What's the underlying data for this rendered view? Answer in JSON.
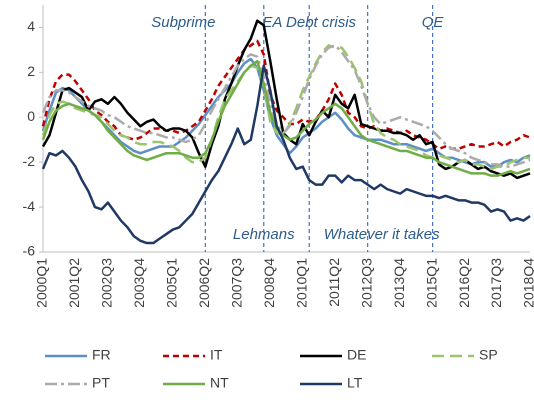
{
  "chart_data": {
    "type": "line",
    "categories": [
      "2000Q1",
      null,
      null,
      null,
      null,
      "2001Q2",
      null,
      null,
      null,
      null,
      "2002Q3",
      null,
      null,
      null,
      null,
      "2003Q4",
      null,
      null,
      null,
      null,
      "2005Q1",
      null,
      null,
      null,
      null,
      "2006Q2",
      null,
      null,
      null,
      null,
      "2007Q3",
      null,
      null,
      null,
      null,
      "2008Q4",
      null,
      null,
      null,
      null,
      "2010Q1",
      null,
      null,
      null,
      null,
      "2011Q2",
      null,
      null,
      null,
      null,
      "2012Q3",
      null,
      null,
      null,
      null,
      "2013Q4",
      null,
      null,
      null,
      null,
      "2015Q1",
      null,
      null,
      null,
      null,
      "2016Q2",
      null,
      null,
      null,
      null,
      "2017Q3",
      null,
      null,
      null,
      null,
      "2018Q4"
    ],
    "ylim": [
      -6,
      5
    ],
    "yticks": [
      -6,
      -4,
      -2,
      0,
      2,
      4
    ],
    "grid": false,
    "series": [
      {
        "name": "FR",
        "color": "#5b8fc7",
        "style": "solid",
        "values": [
          -0.6,
          0.3,
          1.1,
          1.3,
          1.2,
          0.9,
          0.6,
          0.3,
          0.1,
          -0.2,
          -0.5,
          -0.8,
          -1.1,
          -1.3,
          -1.5,
          -1.6,
          -1.5,
          -1.4,
          -1.3,
          -1.3,
          -1.3,
          -1.1,
          -0.9,
          -0.6,
          -0.3,
          0.1,
          0.5,
          0.9,
          1.2,
          1.5,
          2.0,
          2.4,
          2.6,
          2.2,
          1.2,
          0.0,
          -0.8,
          -1.2,
          -1.6,
          -1.3,
          -0.9,
          -0.7,
          -0.5,
          -0.2,
          0.0,
          0.2,
          -0.1,
          -0.5,
          -0.8,
          -0.9,
          -1.0,
          -1.0,
          -1.0,
          -1.1,
          -1.2,
          -1.2,
          -1.2,
          -1.3,
          -1.4,
          -1.5,
          -1.4,
          -1.6,
          -1.8,
          -1.8,
          -1.9,
          -2.0,
          -2.1,
          -2.0,
          -2.0,
          -2.2,
          -2.2,
          -2.0,
          -1.9,
          -2.0,
          -1.8,
          -1.7
        ]
      },
      {
        "name": "IT",
        "color": "#c00000",
        "style": "dash",
        "values": [
          -0.4,
          0.8,
          1.6,
          1.9,
          1.9,
          1.6,
          1.2,
          0.8,
          0.3,
          0.1,
          -0.2,
          -0.4,
          -0.8,
          -0.9,
          -1.0,
          -0.9,
          -0.7,
          -0.5,
          -0.5,
          -0.6,
          -0.6,
          -0.7,
          -0.6,
          -0.4,
          -0.2,
          0.3,
          0.8,
          1.4,
          1.8,
          2.2,
          2.6,
          3.0,
          3.2,
          3.4,
          2.8,
          1.0,
          0.3,
          0.0,
          -0.3,
          -0.3,
          -0.1,
          -0.2,
          -0.1,
          0.3,
          0.8,
          1.5,
          1.0,
          0.2,
          0.0,
          -0.4,
          -0.5,
          -0.4,
          -0.6,
          -0.5,
          -0.6,
          -0.7,
          -0.6,
          -0.8,
          -0.9,
          -1.0,
          -1.2,
          -1.4,
          -1.3,
          -1.4,
          -1.4,
          -1.3,
          -1.2,
          -1.3,
          -1.3,
          -1.2,
          -1.1,
          -1.3,
          -1.1,
          -1.0,
          -0.8,
          -0.9
        ]
      },
      {
        "name": "DE",
        "color": "#000000",
        "style": "solid",
        "values": [
          -1.3,
          -0.8,
          0.2,
          1.2,
          1.3,
          1.1,
          0.9,
          0.3,
          0.7,
          0.8,
          0.6,
          0.9,
          0.6,
          0.2,
          -0.1,
          -0.4,
          -0.2,
          -0.1,
          -0.4,
          -0.6,
          -0.5,
          -0.5,
          -0.6,
          -0.9,
          -1.6,
          -2.2,
          -1.2,
          -0.4,
          0.8,
          1.5,
          2.3,
          3.0,
          3.5,
          4.3,
          4.1,
          2.5,
          0.8,
          -0.7,
          -1.0,
          -1.2,
          -0.3,
          -0.8,
          -0.2,
          0.3,
          0.0,
          1.0,
          0.6,
          0.4,
          1.0,
          -0.3,
          -0.4,
          -0.5,
          -0.6,
          -0.6,
          -0.7,
          -0.7,
          -0.8,
          -1.0,
          -0.8,
          -1.2,
          -1.1,
          -2.1,
          -2.3,
          -2.2,
          -2.0,
          -1.9,
          -2.1,
          -2.3,
          -2.2,
          -2.4,
          -2.5,
          -2.6,
          -2.5,
          -2.7,
          -2.6,
          -2.5
        ]
      },
      {
        "name": "SP",
        "color": "#9cc46c",
        "style": "longdash",
        "values": [
          -0.8,
          0.1,
          0.6,
          0.7,
          0.6,
          0.4,
          0.3,
          0.2,
          0.1,
          0.0,
          -0.3,
          -0.6,
          -0.8,
          -0.9,
          -1.1,
          -1.2,
          -1.2,
          -1.1,
          -1.1,
          -1.2,
          -1.3,
          -1.5,
          -1.8,
          -2.0,
          -2.0,
          -1.8,
          -1.0,
          0.0,
          0.8,
          1.2,
          1.6,
          2.0,
          2.3,
          2.2,
          1.4,
          -0.2,
          -0.7,
          -0.8,
          -0.3,
          0.4,
          1.2,
          1.8,
          2.4,
          2.9,
          3.2,
          3.1,
          3.1,
          2.7,
          2.2,
          1.6,
          0.6,
          -0.3,
          -0.7,
          -0.9,
          -1.0,
          -1.2,
          -1.3,
          -1.4,
          -1.5,
          -1.7,
          -1.8,
          -1.7,
          -1.8,
          -1.9,
          -2.0,
          -1.9,
          -2.1,
          -2.1,
          -2.2,
          -2.3,
          -2.2,
          -2.2,
          -2.0,
          -1.9,
          -1.8,
          -1.8
        ]
      },
      {
        "name": "PT",
        "color": "#ababab",
        "style": "dashdot",
        "values": [
          0.2,
          0.9,
          1.2,
          1.2,
          1.1,
          0.9,
          0.7,
          0.5,
          0.4,
          0.3,
          0.1,
          0.0,
          -0.2,
          -0.4,
          -0.5,
          -0.6,
          -0.7,
          -0.7,
          -0.8,
          -0.9,
          -0.9,
          -1.0,
          -1.1,
          -1.0,
          -0.8,
          -0.3,
          0.3,
          0.8,
          1.3,
          1.8,
          2.3,
          2.6,
          2.8,
          2.7,
          1.8,
          0.6,
          -0.3,
          -0.7,
          -0.4,
          0.2,
          0.9,
          1.7,
          2.3,
          2.8,
          3.1,
          3.2,
          2.9,
          2.5,
          2.1,
          1.4,
          0.6,
          0.0,
          -0.3,
          -0.2,
          -0.1,
          0.0,
          -0.1,
          -0.2,
          -0.3,
          -0.4,
          -0.6,
          -0.9,
          -1.2,
          -1.4,
          -1.5,
          -1.6,
          -1.8,
          -1.9,
          -2.0,
          -2.1,
          -2.1,
          -2.2,
          -2.2,
          -2.1,
          -2.0,
          -1.9
        ]
      },
      {
        "name": "NT",
        "color": "#70ad47",
        "style": "solid",
        "values": [
          -1.0,
          -0.2,
          0.3,
          0.5,
          0.6,
          0.5,
          0.4,
          0.3,
          0.1,
          -0.2,
          -0.6,
          -0.9,
          -1.2,
          -1.5,
          -1.7,
          -1.8,
          -1.9,
          -1.8,
          -1.7,
          -1.6,
          -1.6,
          -1.6,
          -1.7,
          -1.8,
          -1.8,
          -1.6,
          -1.0,
          -0.2,
          0.5,
          1.0,
          1.5,
          2.0,
          2.3,
          2.5,
          1.5,
          0.2,
          -0.5,
          -0.8,
          -1.0,
          -0.9,
          -0.6,
          -0.3,
          -0.1,
          0.2,
          0.4,
          0.6,
          0.4,
          0.0,
          -0.4,
          -0.8,
          -1.0,
          -1.1,
          -1.2,
          -1.3,
          -1.4,
          -1.5,
          -1.5,
          -1.6,
          -1.7,
          -1.8,
          -1.8,
          -2.0,
          -2.1,
          -2.2,
          -2.3,
          -2.4,
          -2.5,
          -2.5,
          -2.5,
          -2.6,
          -2.6,
          -2.5,
          -2.4,
          -2.5,
          -2.4,
          -2.3
        ]
      },
      {
        "name": "LT",
        "color": "#1f3864",
        "style": "solid",
        "values": [
          -2.3,
          -1.6,
          -1.7,
          -1.5,
          -1.8,
          -2.2,
          -2.8,
          -3.3,
          -4.0,
          -4.1,
          -3.8,
          -4.2,
          -4.6,
          -4.9,
          -5.3,
          -5.5,
          -5.6,
          -5.6,
          -5.4,
          -5.2,
          -5.0,
          -4.9,
          -4.6,
          -4.3,
          -3.8,
          -3.3,
          -2.8,
          -2.4,
          -1.8,
          -1.2,
          -0.5,
          -1.2,
          -1.0,
          0.5,
          2.3,
          1.2,
          -0.4,
          -1.0,
          -1.8,
          -2.3,
          -2.2,
          -2.8,
          -3.0,
          -3.0,
          -2.6,
          -2.6,
          -2.9,
          -2.6,
          -2.8,
          -2.8,
          -3.0,
          -3.2,
          -3.0,
          -3.2,
          -3.3,
          -3.4,
          -3.2,
          -3.3,
          -3.4,
          -3.5,
          -3.5,
          -3.6,
          -3.5,
          -3.6,
          -3.7,
          -3.7,
          -3.8,
          -3.8,
          -3.9,
          -4.2,
          -4.1,
          -4.2,
          -4.6,
          -4.5,
          -4.6,
          -4.4
        ]
      }
    ],
    "events": [
      {
        "label": "Subprime",
        "x": 25,
        "place": "top"
      },
      {
        "label": "Lehmans",
        "x": 34,
        "place": "bottom"
      },
      {
        "label": "EA Debt crisis",
        "x": 41,
        "place": "top"
      },
      {
        "label": "Whatever it takes",
        "x": 50,
        "place": "bottom"
      },
      {
        "label": "QE",
        "x": 60,
        "place": "top"
      }
    ]
  }
}
